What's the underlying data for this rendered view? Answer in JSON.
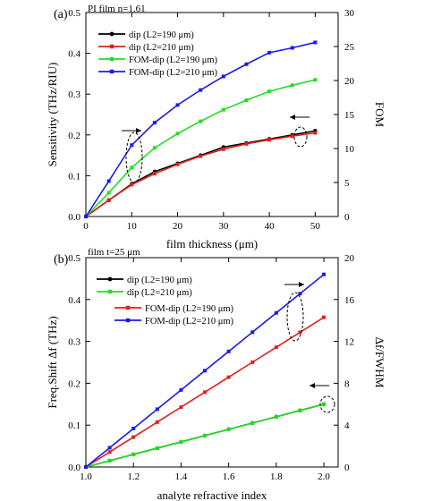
{
  "chart_data": [
    {
      "type": "line",
      "panel_label": "(a)",
      "annotation": "PI film n=1.61",
      "xlabel": "film thickness (μm)",
      "ylabel": "Sensitivity (THz/RIU)",
      "y2label": "FOM",
      "xlim": [
        0,
        55
      ],
      "ylim": [
        0,
        0.5
      ],
      "y2lim": [
        0,
        30
      ],
      "xticks": [
        0,
        10,
        20,
        30,
        40,
        50
      ],
      "xtick_labels": [
        "0",
        "10",
        "20",
        "30",
        "40",
        "50"
      ],
      "yticks": [
        0,
        0.1,
        0.2,
        0.3,
        0.4,
        0.5
      ],
      "ytick_labels": [
        "0.0",
        "0.1",
        "0.2",
        "0.3",
        "0.4",
        "0.5"
      ],
      "y2ticks": [
        0,
        5,
        10,
        15,
        20,
        25,
        30
      ],
      "y2tick_labels": [
        "0",
        "5",
        "10",
        "15",
        "20",
        "25",
        "30"
      ],
      "grid": false,
      "legend_position": "top-left",
      "x": [
        0,
        5,
        10,
        15,
        20,
        25,
        30,
        35,
        40,
        45,
        50
      ],
      "series": [
        {
          "name": "dip (L2=190 μm)",
          "axis": "left",
          "color": "#000000",
          "marker": "circle",
          "values": [
            0,
            0.04,
            0.08,
            0.11,
            0.13,
            0.15,
            0.17,
            0.18,
            0.19,
            0.2,
            0.21
          ]
        },
        {
          "name": "dip (L2=210 μm)",
          "axis": "left",
          "color": "#e0201b",
          "marker": "square",
          "values": [
            0,
            0.04,
            0.078,
            0.105,
            0.128,
            0.148,
            0.165,
            0.178,
            0.188,
            0.197,
            0.205
          ]
        },
        {
          "name": "FOM-dip (L2=190 μm)",
          "axis": "right",
          "color": "#22dd22",
          "marker": "square",
          "values": [
            0,
            3.5,
            7.2,
            10.1,
            12.2,
            14.0,
            15.7,
            17.1,
            18.4,
            19.3,
            20.1
          ]
        },
        {
          "name": "FOM-dip (L2=210 μm)",
          "axis": "right",
          "color": "#1a1aee",
          "marker": "square",
          "values": [
            0,
            5.2,
            10.5,
            13.8,
            16.4,
            18.6,
            20.6,
            22.4,
            24.1,
            24.8,
            25.6
          ]
        }
      ]
    },
    {
      "type": "line",
      "panel_label": "(b)",
      "annotation": "film t=25 μm",
      "xlabel": "analyte refractive index",
      "ylabel": "Freq.Shift Δf (THz)",
      "y2label": "Δf/FWHM",
      "xlim": [
        1.0,
        2.06
      ],
      "ylim": [
        0,
        0.5
      ],
      "y2lim": [
        0,
        20
      ],
      "xticks": [
        1.0,
        1.2,
        1.4,
        1.6,
        1.8,
        2.0
      ],
      "xtick_labels": [
        "1.0",
        "1.2",
        "1.4",
        "1.6",
        "1.8",
        "2.0"
      ],
      "yticks": [
        0,
        0.1,
        0.2,
        0.3,
        0.4,
        0.5
      ],
      "ytick_labels": [
        "0.0",
        "0.1",
        "0.2",
        "0.3",
        "0.4",
        "0.5"
      ],
      "y2ticks": [
        0,
        4,
        8,
        12,
        16,
        20
      ],
      "y2tick_labels": [
        "0",
        "4",
        "8",
        "12",
        "16",
        "20"
      ],
      "grid": false,
      "legend_position": "top-left",
      "x": [
        1.0,
        1.1,
        1.2,
        1.3,
        1.4,
        1.5,
        1.6,
        1.7,
        1.8,
        1.9,
        2.0
      ],
      "series": [
        {
          "name": "dip (L2=190 μm)",
          "axis": "left",
          "color": "#000000",
          "marker": "circle",
          "values": [
            0,
            0.015,
            0.03,
            0.045,
            0.06,
            0.075,
            0.09,
            0.105,
            0.12,
            0.135,
            0.15
          ]
        },
        {
          "name": "dip (L2=210 μm)",
          "axis": "left",
          "color": "#22dd22",
          "marker": "square",
          "values": [
            0,
            0.015,
            0.03,
            0.045,
            0.06,
            0.075,
            0.09,
            0.105,
            0.12,
            0.135,
            0.15
          ]
        },
        {
          "name": "FOM-dip (L2=190 μm)",
          "axis": "right",
          "color": "#e0201b",
          "marker": "square",
          "values": [
            0,
            1.43,
            2.86,
            4.29,
            5.72,
            7.15,
            8.58,
            10.01,
            11.44,
            12.87,
            14.3
          ]
        },
        {
          "name": "FOM-dip (L2=210 μm)",
          "axis": "right",
          "color": "#1a1aee",
          "marker": "square",
          "values": [
            0,
            1.84,
            3.68,
            5.52,
            7.36,
            9.2,
            11.04,
            12.88,
            14.72,
            16.56,
            18.4
          ]
        }
      ]
    }
  ]
}
